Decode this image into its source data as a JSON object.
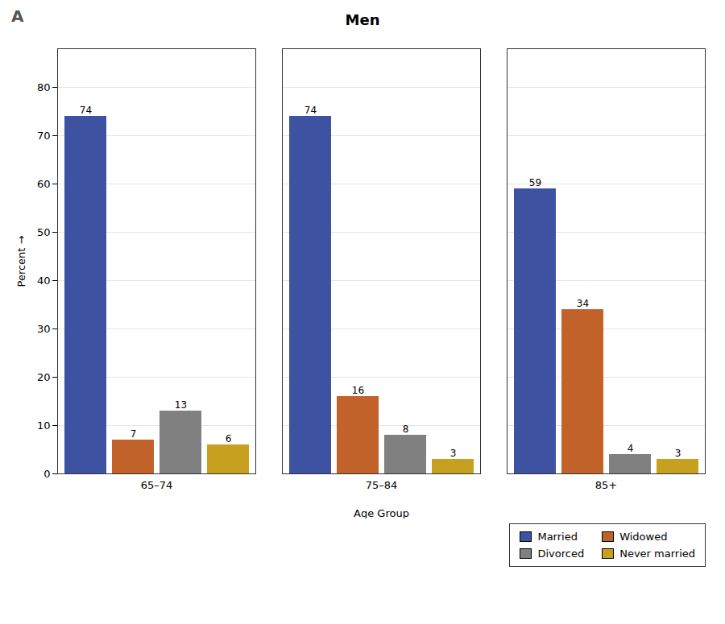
{
  "chart_data": {
    "type": "bar",
    "title": "Men",
    "annotations": [
      "A"
    ],
    "xlabel": "Age Group",
    "ylabel": "Percent",
    "categories": [
      "65–74",
      "75–84",
      "85+"
    ],
    "series": [
      {
        "name": "Married",
        "color": "#3d52a1",
        "values": [
          74,
          74,
          59
        ]
      },
      {
        "name": "Widowed",
        "color": "#c0622a",
        "values": [
          7,
          16,
          34
        ]
      },
      {
        "name": "Divorced",
        "color": "#808080",
        "values": [
          13,
          8,
          4
        ]
      },
      {
        "name": "Never married",
        "color": "#c8a020",
        "values": [
          6,
          3,
          3
        ]
      }
    ],
    "ylim": [
      0,
      88
    ],
    "yticks": [
      0,
      10,
      20,
      30,
      40,
      50,
      60,
      70,
      80
    ],
    "grid": true,
    "legend": "lower right",
    "data_labels": true
  }
}
